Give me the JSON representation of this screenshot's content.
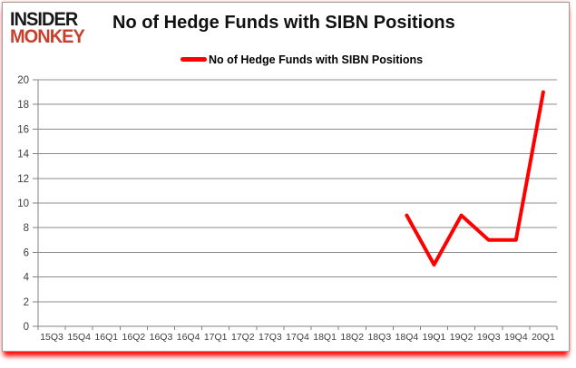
{
  "brand": {
    "line1": "INSIDER",
    "line2": "MONKEY",
    "line1_color": "#191919",
    "line2_color": "#c7402e"
  },
  "chart_data": {
    "type": "line",
    "title": "No of Hedge Funds with SIBN Positions",
    "legend_label": "No of Hedge Funds with SIBN Positions",
    "legend_position": "top",
    "categories": [
      "15Q3",
      "15Q4",
      "16Q1",
      "16Q2",
      "16Q3",
      "16Q4",
      "17Q1",
      "17Q2",
      "17Q3",
      "17Q4",
      "18Q1",
      "18Q2",
      "18Q3",
      "18Q4",
      "19Q1",
      "19Q2",
      "19Q3",
      "19Q4",
      "20Q1"
    ],
    "series": [
      {
        "name": "No of Hedge Funds with SIBN Positions",
        "color": "#ff0000",
        "values": [
          null,
          null,
          null,
          null,
          null,
          null,
          null,
          null,
          null,
          null,
          null,
          null,
          null,
          9,
          5,
          9,
          7,
          7,
          19
        ]
      }
    ],
    "ylim": [
      0,
      20
    ],
    "ytick_step": 2,
    "grid": true,
    "gridline_color": "#8c8c8c",
    "axis_color": "#808080",
    "label_color": "#3d3d3d"
  }
}
